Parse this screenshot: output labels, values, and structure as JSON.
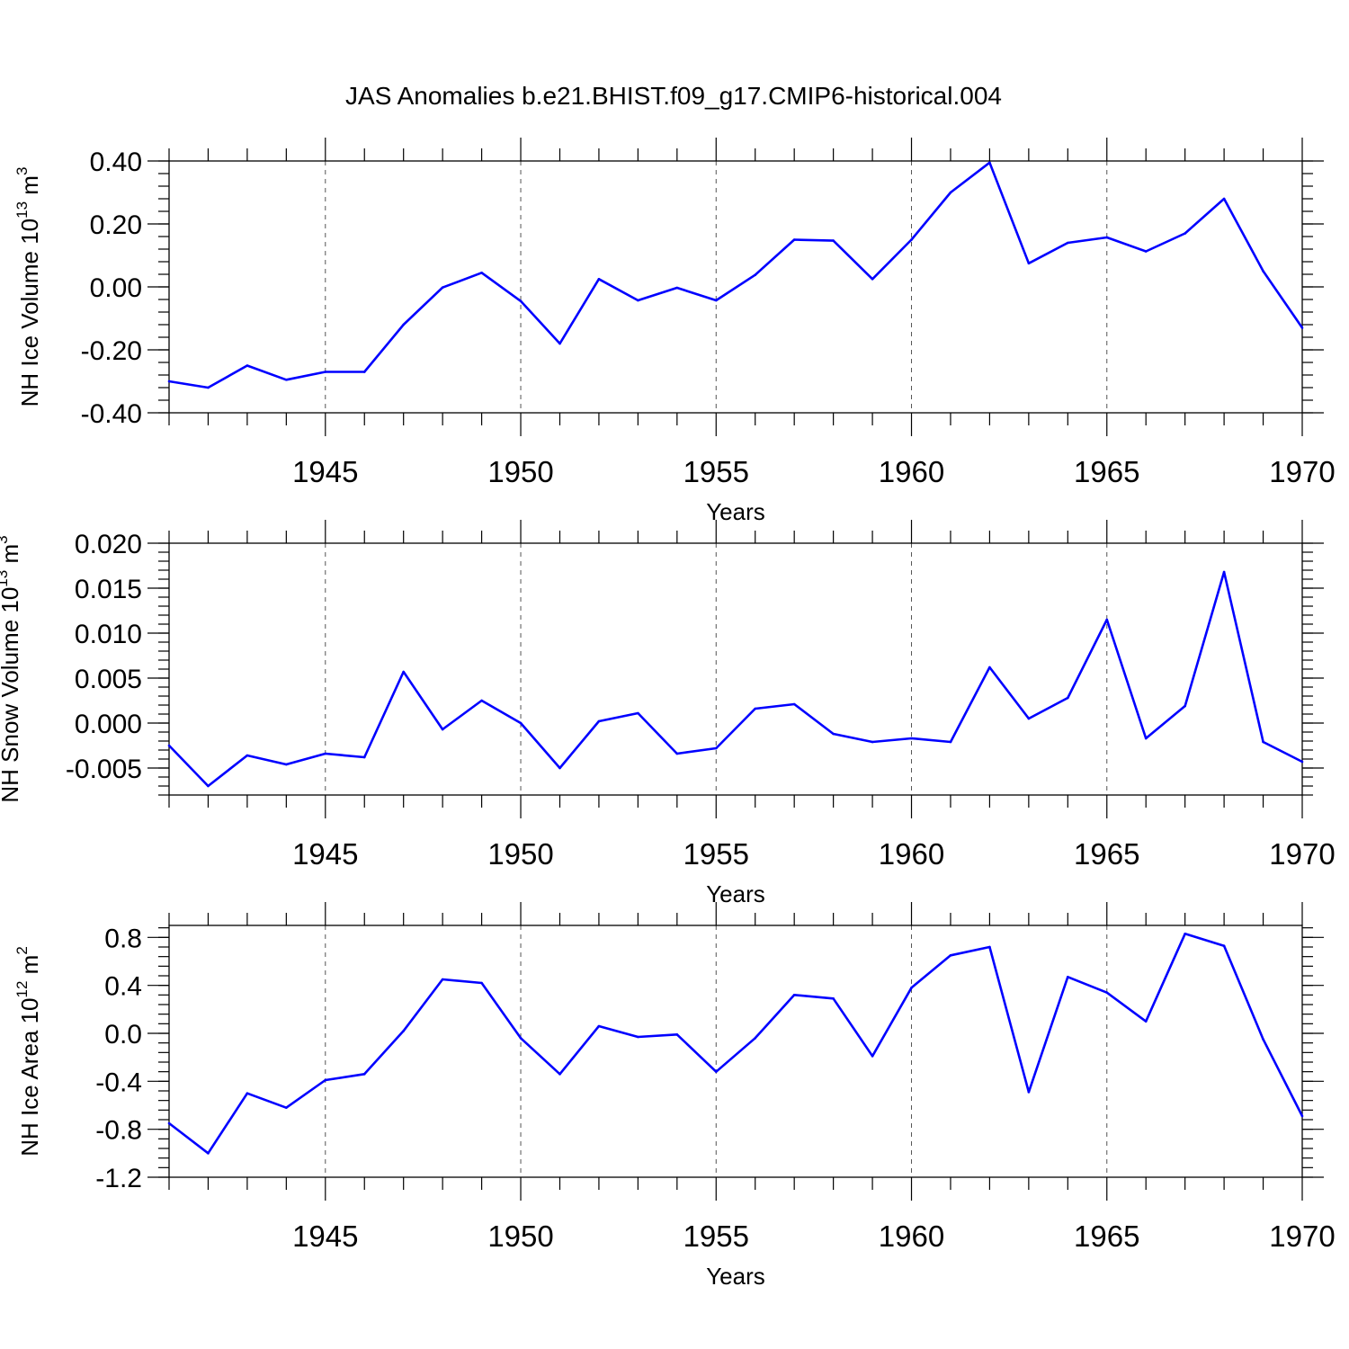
{
  "figure": {
    "title": "JAS Anomalies b.e21.BHIST.f09_g17.CMIP6-historical.004"
  },
  "chart_data": [
    {
      "type": "line",
      "xlabel": "Years",
      "ylabel": "NH Ice Volume 10",
      "ylabel_exp": "13",
      "ylabel_unit": " m",
      "ylabel_unit_exp": "3",
      "xlim": [
        1941,
        1970
      ],
      "ylim": [
        -0.4,
        0.4
      ],
      "yticks": [
        -0.4,
        -0.2,
        0.0,
        0.2,
        0.4
      ],
      "ytick_labels": [
        "-0.40",
        "-0.20",
        "0.00",
        "0.20",
        "0.40"
      ],
      "yminor_step": 0.04,
      "xticks": [
        1945,
        1950,
        1955,
        1960,
        1965,
        1970
      ],
      "xtick_labels": [
        "1945",
        "1950",
        "1955",
        "1960",
        "1965",
        "1970"
      ],
      "grid_x": [
        1945,
        1950,
        1955,
        1960,
        1965
      ],
      "color": "#0000ff",
      "x": [
        1941,
        1942,
        1943,
        1944,
        1945,
        1946,
        1947,
        1948,
        1949,
        1950,
        1951,
        1952,
        1953,
        1954,
        1955,
        1956,
        1957,
        1958,
        1959,
        1960,
        1961,
        1962,
        1963,
        1964,
        1965,
        1966,
        1967,
        1968,
        1969,
        1970
      ],
      "y": [
        -0.3,
        -0.32,
        -0.25,
        -0.295,
        -0.27,
        -0.27,
        -0.12,
        -0.002,
        0.045,
        -0.045,
        -0.18,
        0.025,
        -0.043,
        -0.003,
        -0.043,
        0.038,
        0.15,
        0.147,
        0.025,
        0.15,
        0.3,
        0.395,
        0.075,
        0.14,
        0.157,
        0.113,
        0.17,
        0.28,
        0.05,
        -0.13
      ]
    },
    {
      "type": "line",
      "xlabel": "Years",
      "ylabel": "NH Snow Volume 10",
      "ylabel_exp": "13",
      "ylabel_unit": " m",
      "ylabel_unit_exp": "3",
      "xlim": [
        1941,
        1970
      ],
      "ylim": [
        -0.008,
        0.02
      ],
      "yticks": [
        -0.005,
        0.0,
        0.005,
        0.01,
        0.015,
        0.02
      ],
      "ytick_labels": [
        "-0.005",
        "0.000",
        "0.005",
        "0.010",
        "0.015",
        "0.020"
      ],
      "yminor_step": 0.001,
      "xticks": [
        1945,
        1950,
        1955,
        1960,
        1965,
        1970
      ],
      "xtick_labels": [
        "1945",
        "1950",
        "1955",
        "1960",
        "1965",
        "1970"
      ],
      "grid_x": [
        1945,
        1950,
        1955,
        1960,
        1965
      ],
      "color": "#0000ff",
      "x": [
        1941,
        1942,
        1943,
        1944,
        1945,
        1946,
        1947,
        1948,
        1949,
        1950,
        1951,
        1952,
        1953,
        1954,
        1955,
        1956,
        1957,
        1958,
        1959,
        1960,
        1961,
        1962,
        1963,
        1964,
        1965,
        1966,
        1967,
        1968,
        1969,
        1970
      ],
      "y": [
        -0.0025,
        -0.007,
        -0.0036,
        -0.0046,
        -0.0034,
        -0.0038,
        0.0057,
        -0.0007,
        0.0025,
        0.0,
        -0.005,
        0.0002,
        0.0011,
        -0.0034,
        -0.0028,
        0.0016,
        0.0021,
        -0.0012,
        -0.0021,
        -0.0017,
        -0.0021,
        0.0062,
        0.0005,
        0.0028,
        0.0115,
        -0.0017,
        0.0019,
        0.0168,
        -0.0021,
        -0.0043
      ]
    },
    {
      "type": "line",
      "xlabel": "Years",
      "ylabel": "NH Ice Area 10",
      "ylabel_exp": "12",
      "ylabel_unit": " m",
      "ylabel_unit_exp": "2",
      "xlim": [
        1941,
        1970
      ],
      "ylim": [
        -1.2,
        0.9
      ],
      "yticks": [
        -1.2,
        -0.8,
        -0.4,
        0.0,
        0.4,
        0.8
      ],
      "ytick_labels": [
        "-1.2",
        "-0.8",
        "-0.4",
        "0.0",
        "0.4",
        "0.8"
      ],
      "yminor_step": 0.08,
      "xticks": [
        1945,
        1950,
        1955,
        1960,
        1965,
        1970
      ],
      "xtick_labels": [
        "1945",
        "1950",
        "1955",
        "1960",
        "1965",
        "1970"
      ],
      "grid_x": [
        1945,
        1950,
        1955,
        1960,
        1965
      ],
      "color": "#0000ff",
      "x": [
        1941,
        1942,
        1943,
        1944,
        1945,
        1946,
        1947,
        1948,
        1949,
        1950,
        1951,
        1952,
        1953,
        1954,
        1955,
        1956,
        1957,
        1958,
        1959,
        1960,
        1961,
        1962,
        1963,
        1964,
        1965,
        1966,
        1967,
        1968,
        1969,
        1970
      ],
      "y": [
        -0.75,
        -1.0,
        -0.5,
        -0.62,
        -0.39,
        -0.34,
        0.02,
        0.45,
        0.42,
        -0.04,
        -0.34,
        0.06,
        -0.03,
        -0.01,
        -0.32,
        -0.04,
        0.32,
        0.29,
        -0.19,
        0.38,
        0.65,
        0.72,
        -0.49,
        0.47,
        0.34,
        0.1,
        0.83,
        0.73,
        -0.05,
        -0.69
      ]
    }
  ]
}
